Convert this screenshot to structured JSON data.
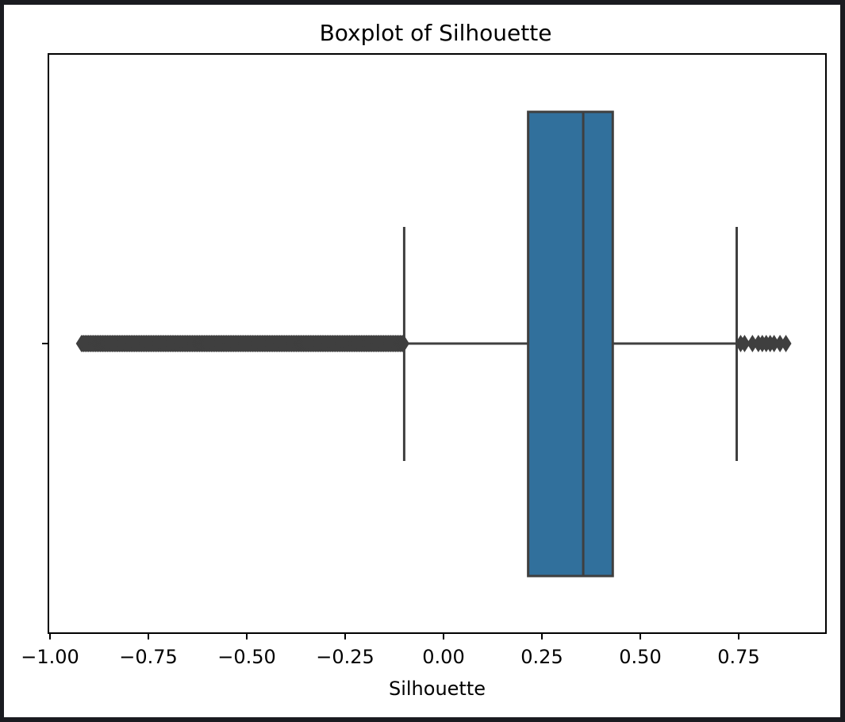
{
  "chart_data": {
    "type": "boxplot",
    "title": "Boxplot of Silhouette",
    "xlabel": "Silhouette",
    "ylabel": "",
    "xlim": [
      -1.0,
      0.96
    ],
    "xticks": [
      -1.0,
      -0.75,
      -0.5,
      -0.25,
      0.0,
      0.25,
      0.5,
      0.75
    ],
    "xtick_labels": [
      "−1.00",
      "−0.75",
      "−0.50",
      "−0.25",
      "0.00",
      "0.25",
      "0.50",
      "0.75"
    ],
    "grid": false,
    "box": {
      "whisker_low": -0.1,
      "q1": 0.215,
      "median": 0.355,
      "q3": 0.43,
      "whisker_high": 0.745
    },
    "outliers": {
      "low_range": [
        -0.92,
        -0.1
      ],
      "high": [
        0.755,
        0.765,
        0.785,
        0.8,
        0.81,
        0.82,
        0.83,
        0.84,
        0.855,
        0.87
      ]
    },
    "colors": {
      "box_fill": "#31709c",
      "line": "#3f3f3f",
      "page_background": "#1a1b20",
      "figure_background": "#ffffff"
    }
  }
}
